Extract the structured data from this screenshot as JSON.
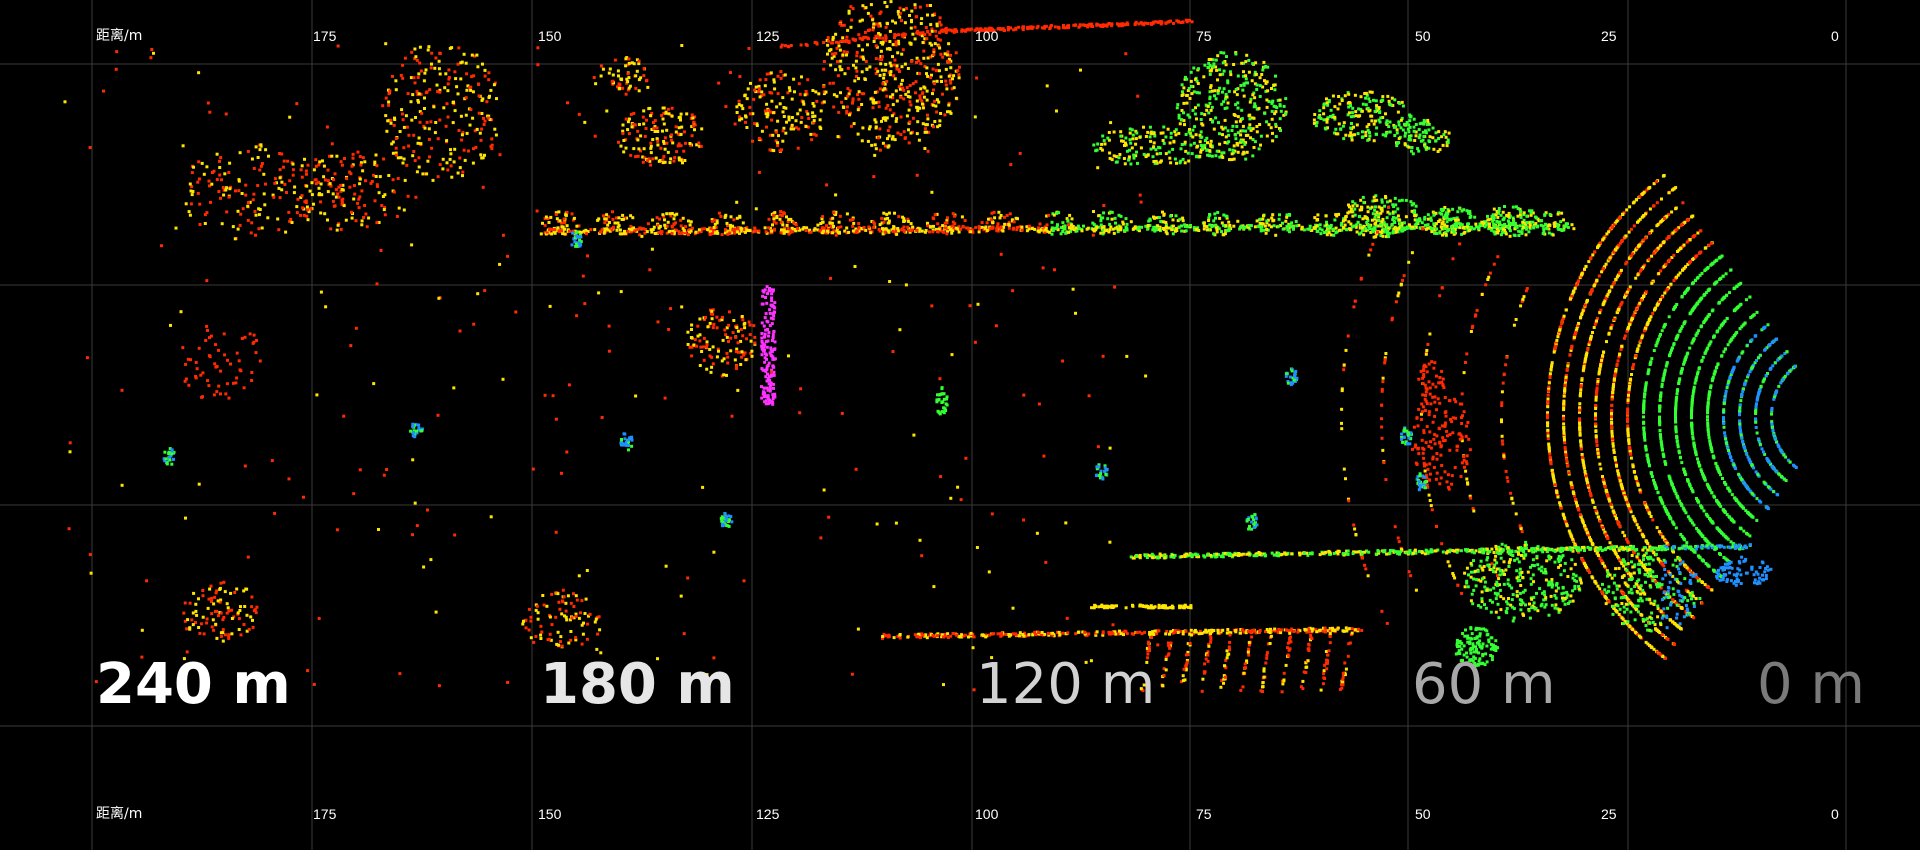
{
  "axis": {
    "unit_label": "距离/m",
    "ticks": [
      "175",
      "150",
      "125",
      "100",
      "75",
      "50",
      "25",
      "0"
    ]
  },
  "range_labels": [
    {
      "text": "240 m",
      "color": "#ffffff",
      "weight": "bold"
    },
    {
      "text": "180 m",
      "color": "#e6e6e6",
      "weight": "bold"
    },
    {
      "text": "120 m",
      "color": "#d2d2d2",
      "weight": "normal"
    },
    {
      "text": "60 m",
      "color": "#a8a8a8",
      "weight": "normal"
    },
    {
      "text": "0 m",
      "color": "#7a7a7a",
      "weight": "normal"
    }
  ],
  "colors": {
    "background": "#000000",
    "grid": "#3a3a3a",
    "far_points": "#ff2a00",
    "mid_points": "#ffe600",
    "near_points": "#33ff33",
    "closest_points": "#1e90ff",
    "pole_points": "#ff33ff"
  }
}
